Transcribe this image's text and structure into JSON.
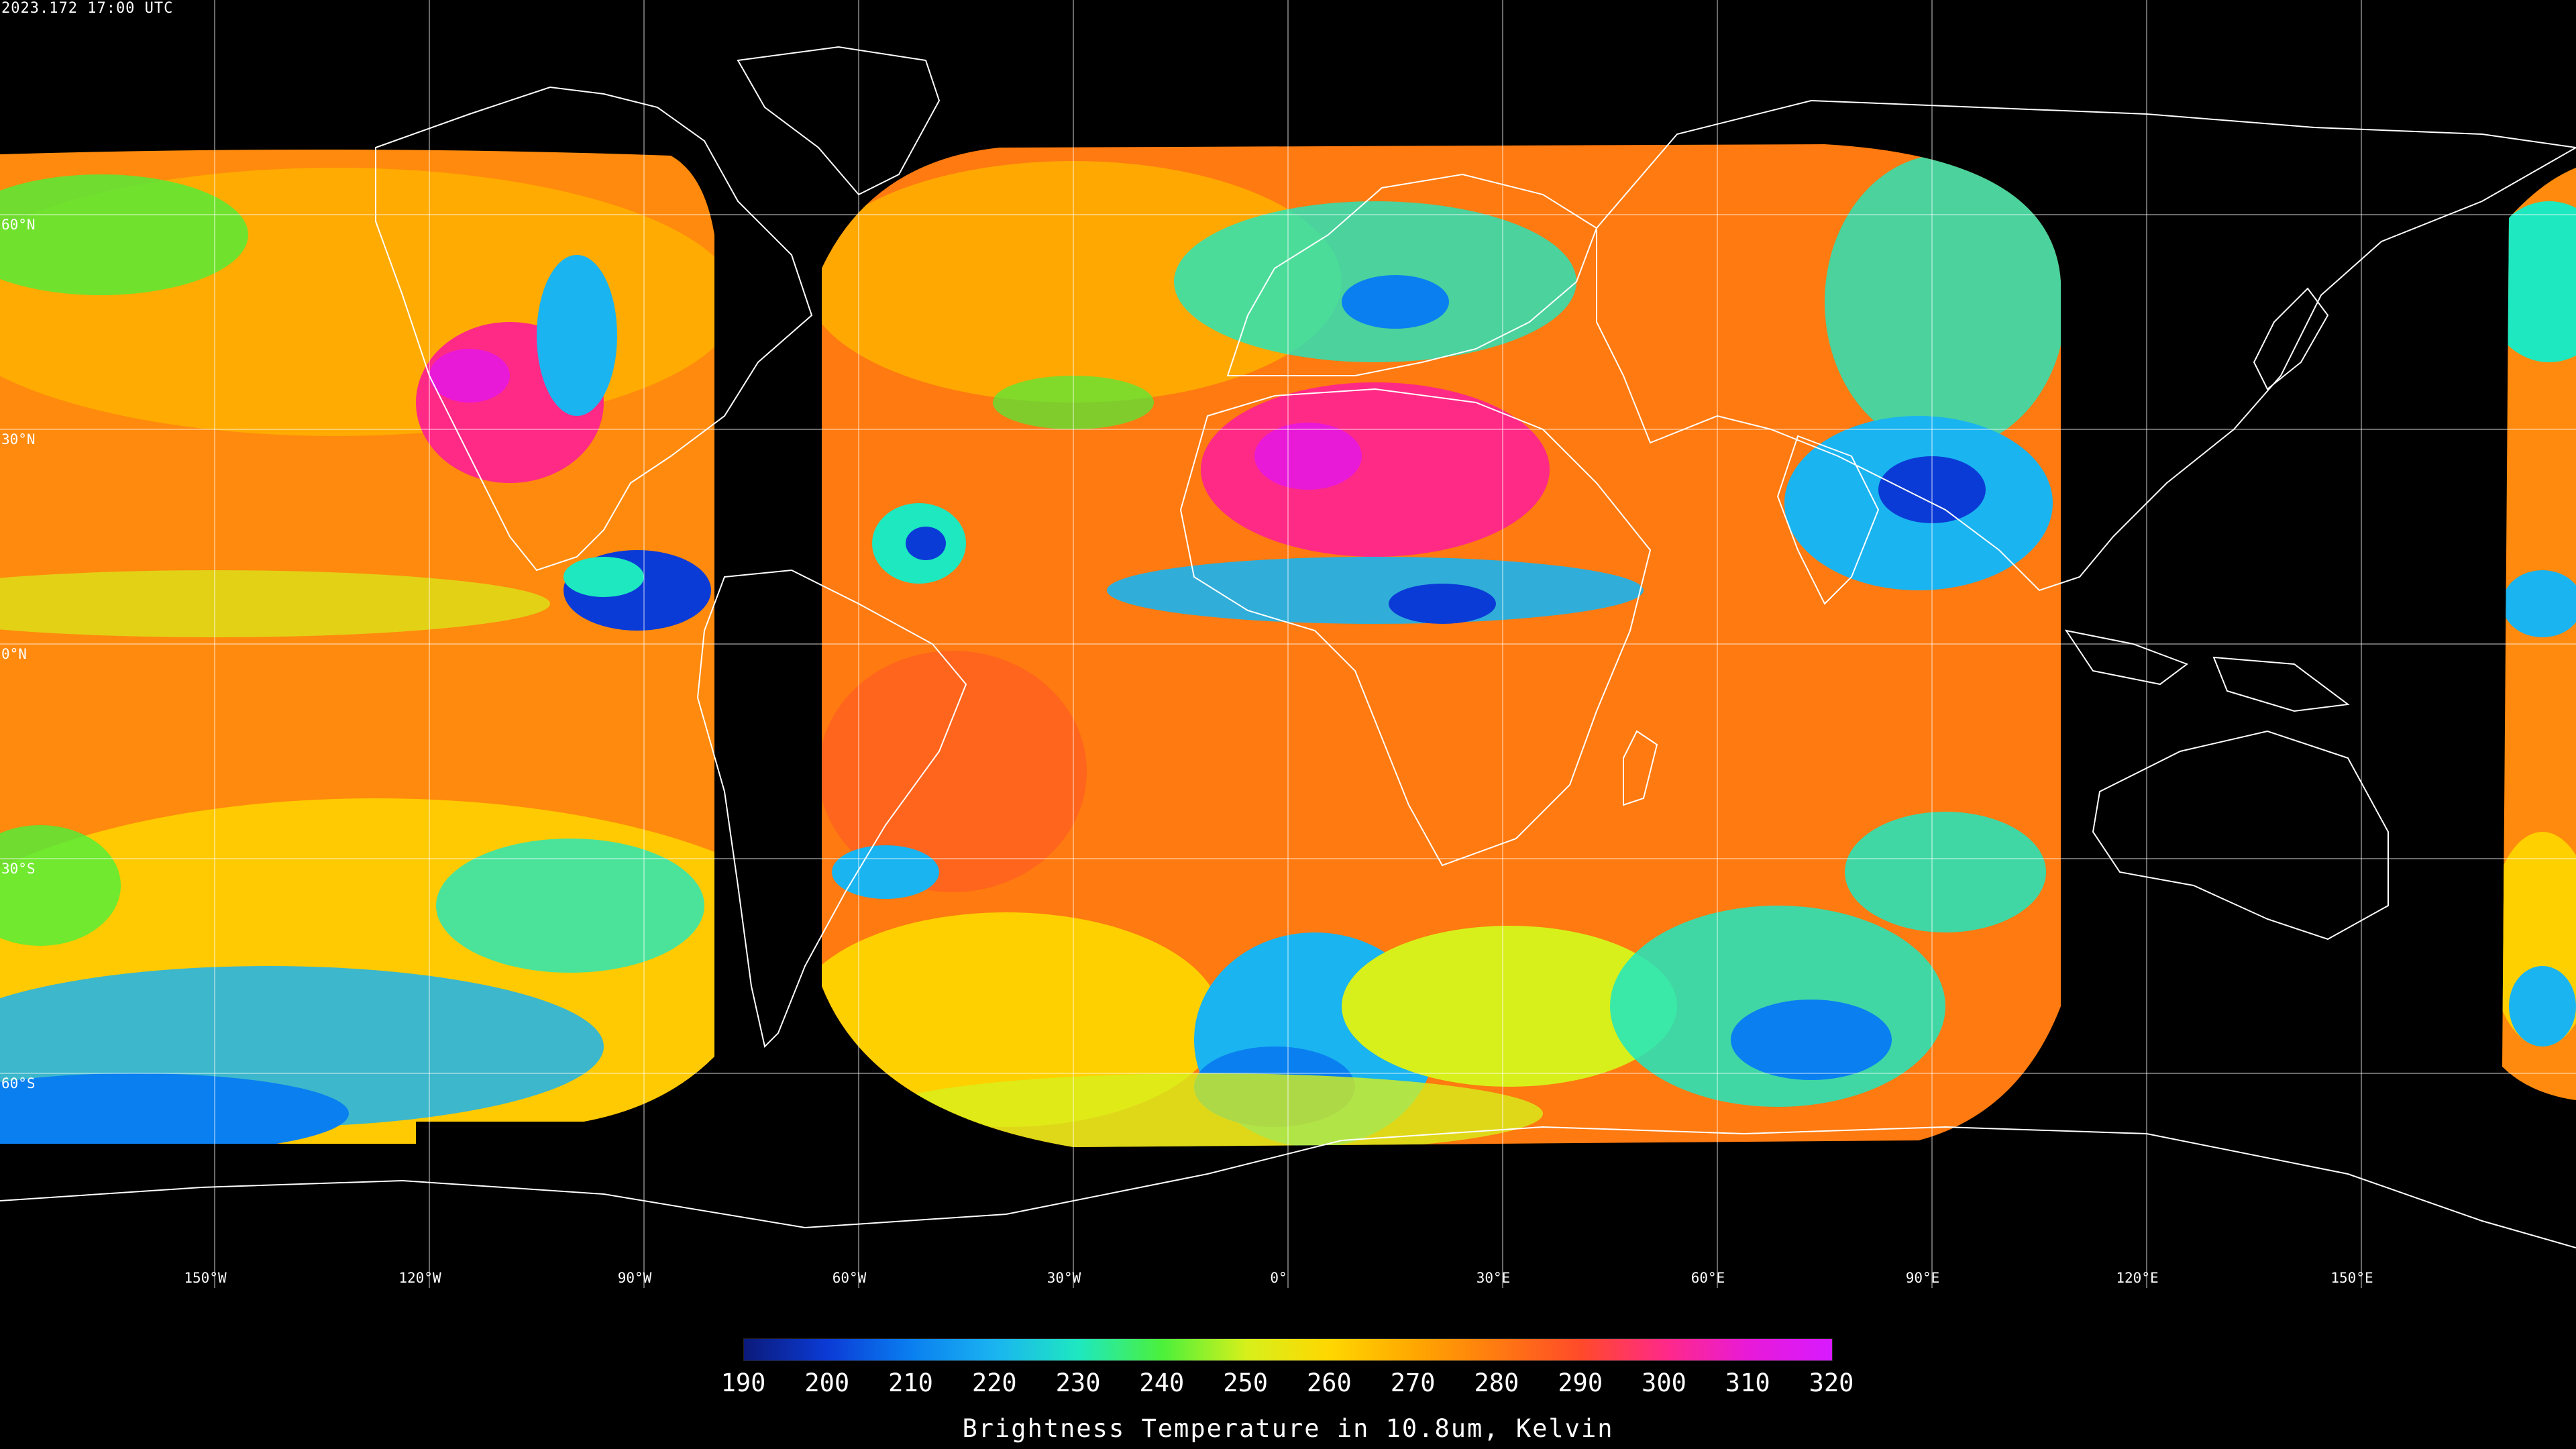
{
  "timestamp": "2023.172 17:00 UTC",
  "lat_labels": [
    "60°N",
    "30°N",
    "0°N",
    "30°S",
    "60°S"
  ],
  "lon_labels": [
    "150°W",
    "120°W",
    "90°W",
    "60°W",
    "30°W",
    "0°",
    "30°E",
    "60°E",
    "90°E",
    "120°E",
    "150°E"
  ],
  "colorbar": {
    "ticks": [
      "190",
      "200",
      "210",
      "220",
      "230",
      "240",
      "250",
      "260",
      "270",
      "280",
      "290",
      "300",
      "310",
      "320"
    ],
    "title": "Brightness Temperature in 10.8um, Kelvin",
    "range": [
      190,
      320
    ]
  },
  "colors": {
    "background": "#000000",
    "coastline": "#ffffff",
    "grid": "#ffffff",
    "cold": "#0b3bd6",
    "mid": "#ffd700",
    "warm": "#ff7a10",
    "hot": "#e81ad8"
  }
}
